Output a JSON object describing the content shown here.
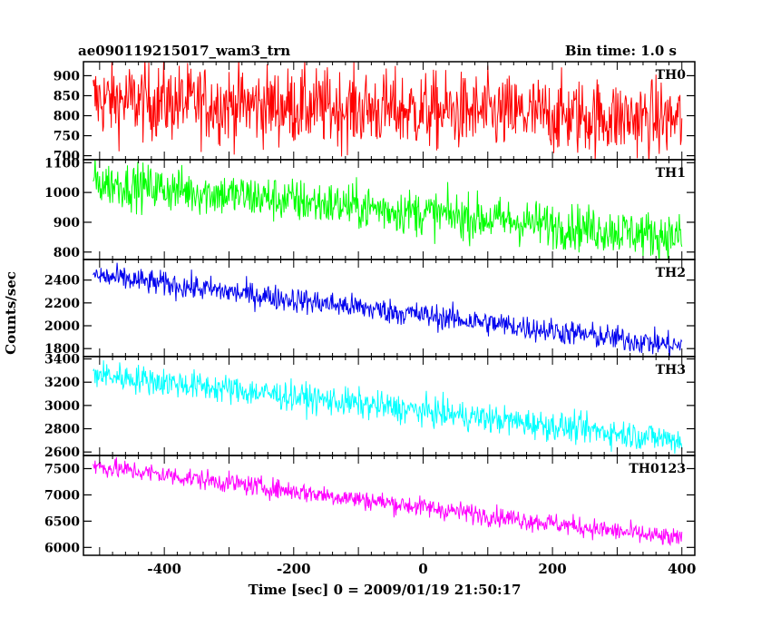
{
  "header": {
    "title": "ae090119215017_wam3_trn",
    "bin_time": "Bin time: 1.0 s"
  },
  "chart_data": {
    "type": "line",
    "xlabel": "Time [sec] 0 = 2009/01/19 21:50:17",
    "ylabel": "Counts/sec",
    "xlim": [
      -525,
      420
    ],
    "x_ticks": [
      -400,
      -200,
      0,
      200,
      400
    ],
    "x_range": [
      -510,
      400
    ],
    "grid": false,
    "panels": [
      {
        "name": "TH0",
        "color": "#ff0000",
        "ylim": [
          690,
          935
        ],
        "y_ticks": [
          700,
          750,
          800,
          850,
          900
        ],
        "start_mean": 840,
        "end_mean": 790,
        "noise": 48
      },
      {
        "name": "TH1",
        "color": "#00ff00",
        "ylim": [
          775,
          1110
        ],
        "y_ticks": [
          800,
          900,
          1000,
          1100
        ],
        "start_mean": 1035,
        "end_mean": 850,
        "noise": 38
      },
      {
        "name": "TH2",
        "color": "#0000ee",
        "ylim": [
          1730,
          2580
        ],
        "y_ticks": [
          1800,
          2000,
          2200,
          2400
        ],
        "start_mean": 2440,
        "end_mean": 1820,
        "noise": 55
      },
      {
        "name": "TH3",
        "color": "#00ffff",
        "ylim": [
          2570,
          3420
        ],
        "y_ticks": [
          2600,
          2800,
          3000,
          3200,
          3400
        ],
        "start_mean": 3270,
        "end_mean": 2700,
        "noise": 62
      },
      {
        "name": "TH0123",
        "color": "#ff00ff",
        "ylim": [
          5850,
          7750
        ],
        "y_ticks": [
          6000,
          6500,
          7000,
          7500
        ],
        "start_mean": 7550,
        "end_mean": 6150,
        "noise": 95
      }
    ]
  }
}
